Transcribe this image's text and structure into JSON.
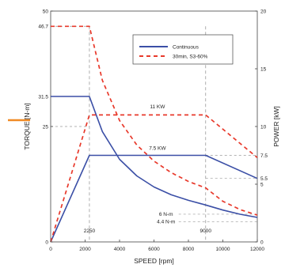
{
  "chart_data": {
    "type": "line",
    "xlabel": "SPEED [rpm]",
    "ylabel_left": "TORQUE [N-m]",
    "ylabel_right": "POWER [kW]",
    "xlim": [
      0,
      12000
    ],
    "ylim_left": [
      0,
      50
    ],
    "ylim_right": [
      0,
      20
    ],
    "x_ticks": [
      "0",
      "2000",
      "4000",
      "6000",
      "8000",
      "10000",
      "12000"
    ],
    "y_left_ticks": [
      "0",
      "25",
      "50"
    ],
    "y_left_tick_values": [
      0,
      25,
      50
    ],
    "y_left_marked": [
      {
        "value": 31.5,
        "label": "31.5"
      },
      {
        "value": 46.7,
        "label": "46.7"
      }
    ],
    "y_right_ticks": [
      "0",
      "5",
      "10",
      "15",
      "20"
    ],
    "y_right_tick_values": [
      0,
      5,
      10,
      15,
      20
    ],
    "y_right_marked": [
      {
        "value": 7.5,
        "label": "7.5"
      },
      {
        "value": 5.5,
        "label": "5.5"
      }
    ],
    "series": [
      {
        "name": "Continuous",
        "axis": "left",
        "style": "solid",
        "color": "#3b4fa6",
        "x": [
          0,
          2250,
          3000,
          4000,
          5000,
          6000,
          7000,
          8000,
          9000,
          10000,
          11000,
          12000
        ],
        "y": [
          31.5,
          31.5,
          23.9,
          17.9,
          14.3,
          11.9,
          10.2,
          9.0,
          8.0,
          6.9,
          6.0,
          5.3
        ]
      },
      {
        "name": "30min, S3-60%",
        "axis": "left",
        "style": "dashed",
        "color": "#e8392b",
        "x": [
          0,
          2250,
          3000,
          4000,
          5000,
          6000,
          7000,
          8000,
          9000,
          10000,
          11000,
          12000
        ],
        "y": [
          46.7,
          46.7,
          35.0,
          26.3,
          21.0,
          17.5,
          15.0,
          13.1,
          11.7,
          8.8,
          7.0,
          5.8
        ]
      },
      {
        "name": "",
        "axis": "right",
        "style": "solid",
        "color": "#3b4fa6",
        "x": [
          0,
          2250,
          9000,
          12000
        ],
        "y": [
          0,
          7.5,
          7.5,
          5.5
        ]
      },
      {
        "name": "",
        "axis": "right",
        "style": "dashed",
        "color": "#e8392b",
        "x": [
          0,
          2250,
          9000,
          12000
        ],
        "y": [
          0,
          11,
          11,
          7.3
        ]
      }
    ],
    "annotations": [
      {
        "text": "11 KW",
        "x": 6200,
        "y_right": 11.7
      },
      {
        "text": "7.5 KW",
        "x": 6200,
        "y_right": 8.1
      },
      {
        "text": "6 N-m",
        "x": 6700,
        "y_left": 6.0
      },
      {
        "text": "4.4 N-m",
        "x": 6700,
        "y_left": 4.4
      }
    ],
    "marker_lines": [
      {
        "x": 2250,
        "label": "2250"
      },
      {
        "x": 9000,
        "label": "9000"
      }
    ],
    "legend": {
      "position": "top-right",
      "entries": [
        "Continuous",
        "30min, S3-60%"
      ]
    },
    "grid": false
  },
  "colors": {
    "continuous": "#3b4fa6",
    "intermittent": "#e8392b",
    "guide": "#9a9a9a",
    "pointer": "#f08a24"
  }
}
